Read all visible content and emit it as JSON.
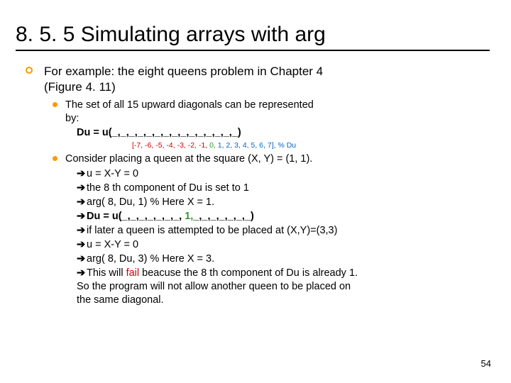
{
  "title": "8. 5. 5 Simulating arrays with arg",
  "lvl1_text_a": "For example: the eight queens problem in Chapter 4",
  "lvl1_text_b": "(Figure 4. 11)",
  "lvl2a_a": "The set of all 15 upward diagonals can be represented",
  "lvl2a_b": "by:",
  "du_def": "Du = u(_,_,_,_,_,_,_,_,_,_,_,_,_,_,_)",
  "indices_red": "[-7, -6, -5, -4, -3, -2, -1,",
  "indices_green": " 0,",
  "indices_blue": " 1, 2, 3, 4, 5, 6, 7], % Du",
  "lvl2b": "Consider placing a queen at the square (X, Y) = (1, 1).",
  "step1": "u = X-Y = 0",
  "step2": "the 8 th component of Du is set to 1",
  "step3": "arg( 8, Du, 1)    % Here X = 1.",
  "step4_pre": "Du = u(_,_,_,_,_,_,_,",
  "step4_mid": " 1,",
  "step4_post": "_,_,_,_,_,_,_)",
  "step5": "if later a queen is attempted to be placed at (X,Y)=(3,3)",
  "step6": "u = X-Y = 0",
  "step7": "arg( 8, Du, 3)    % Here X = 3.",
  "step8_a": "This will ",
  "step8_fail": "fail",
  "step8_b": " beacuse the 8 th component of Du is already 1.",
  "tail1": "So the program will not allow another queen to be placed on",
  "tail2": "the same diagonal.",
  "page": "54",
  "colors": {
    "accent": "#ff9900",
    "red": "#cc0000",
    "green": "#339933",
    "blue": "#0066cc",
    "bg": "#ffffff"
  }
}
